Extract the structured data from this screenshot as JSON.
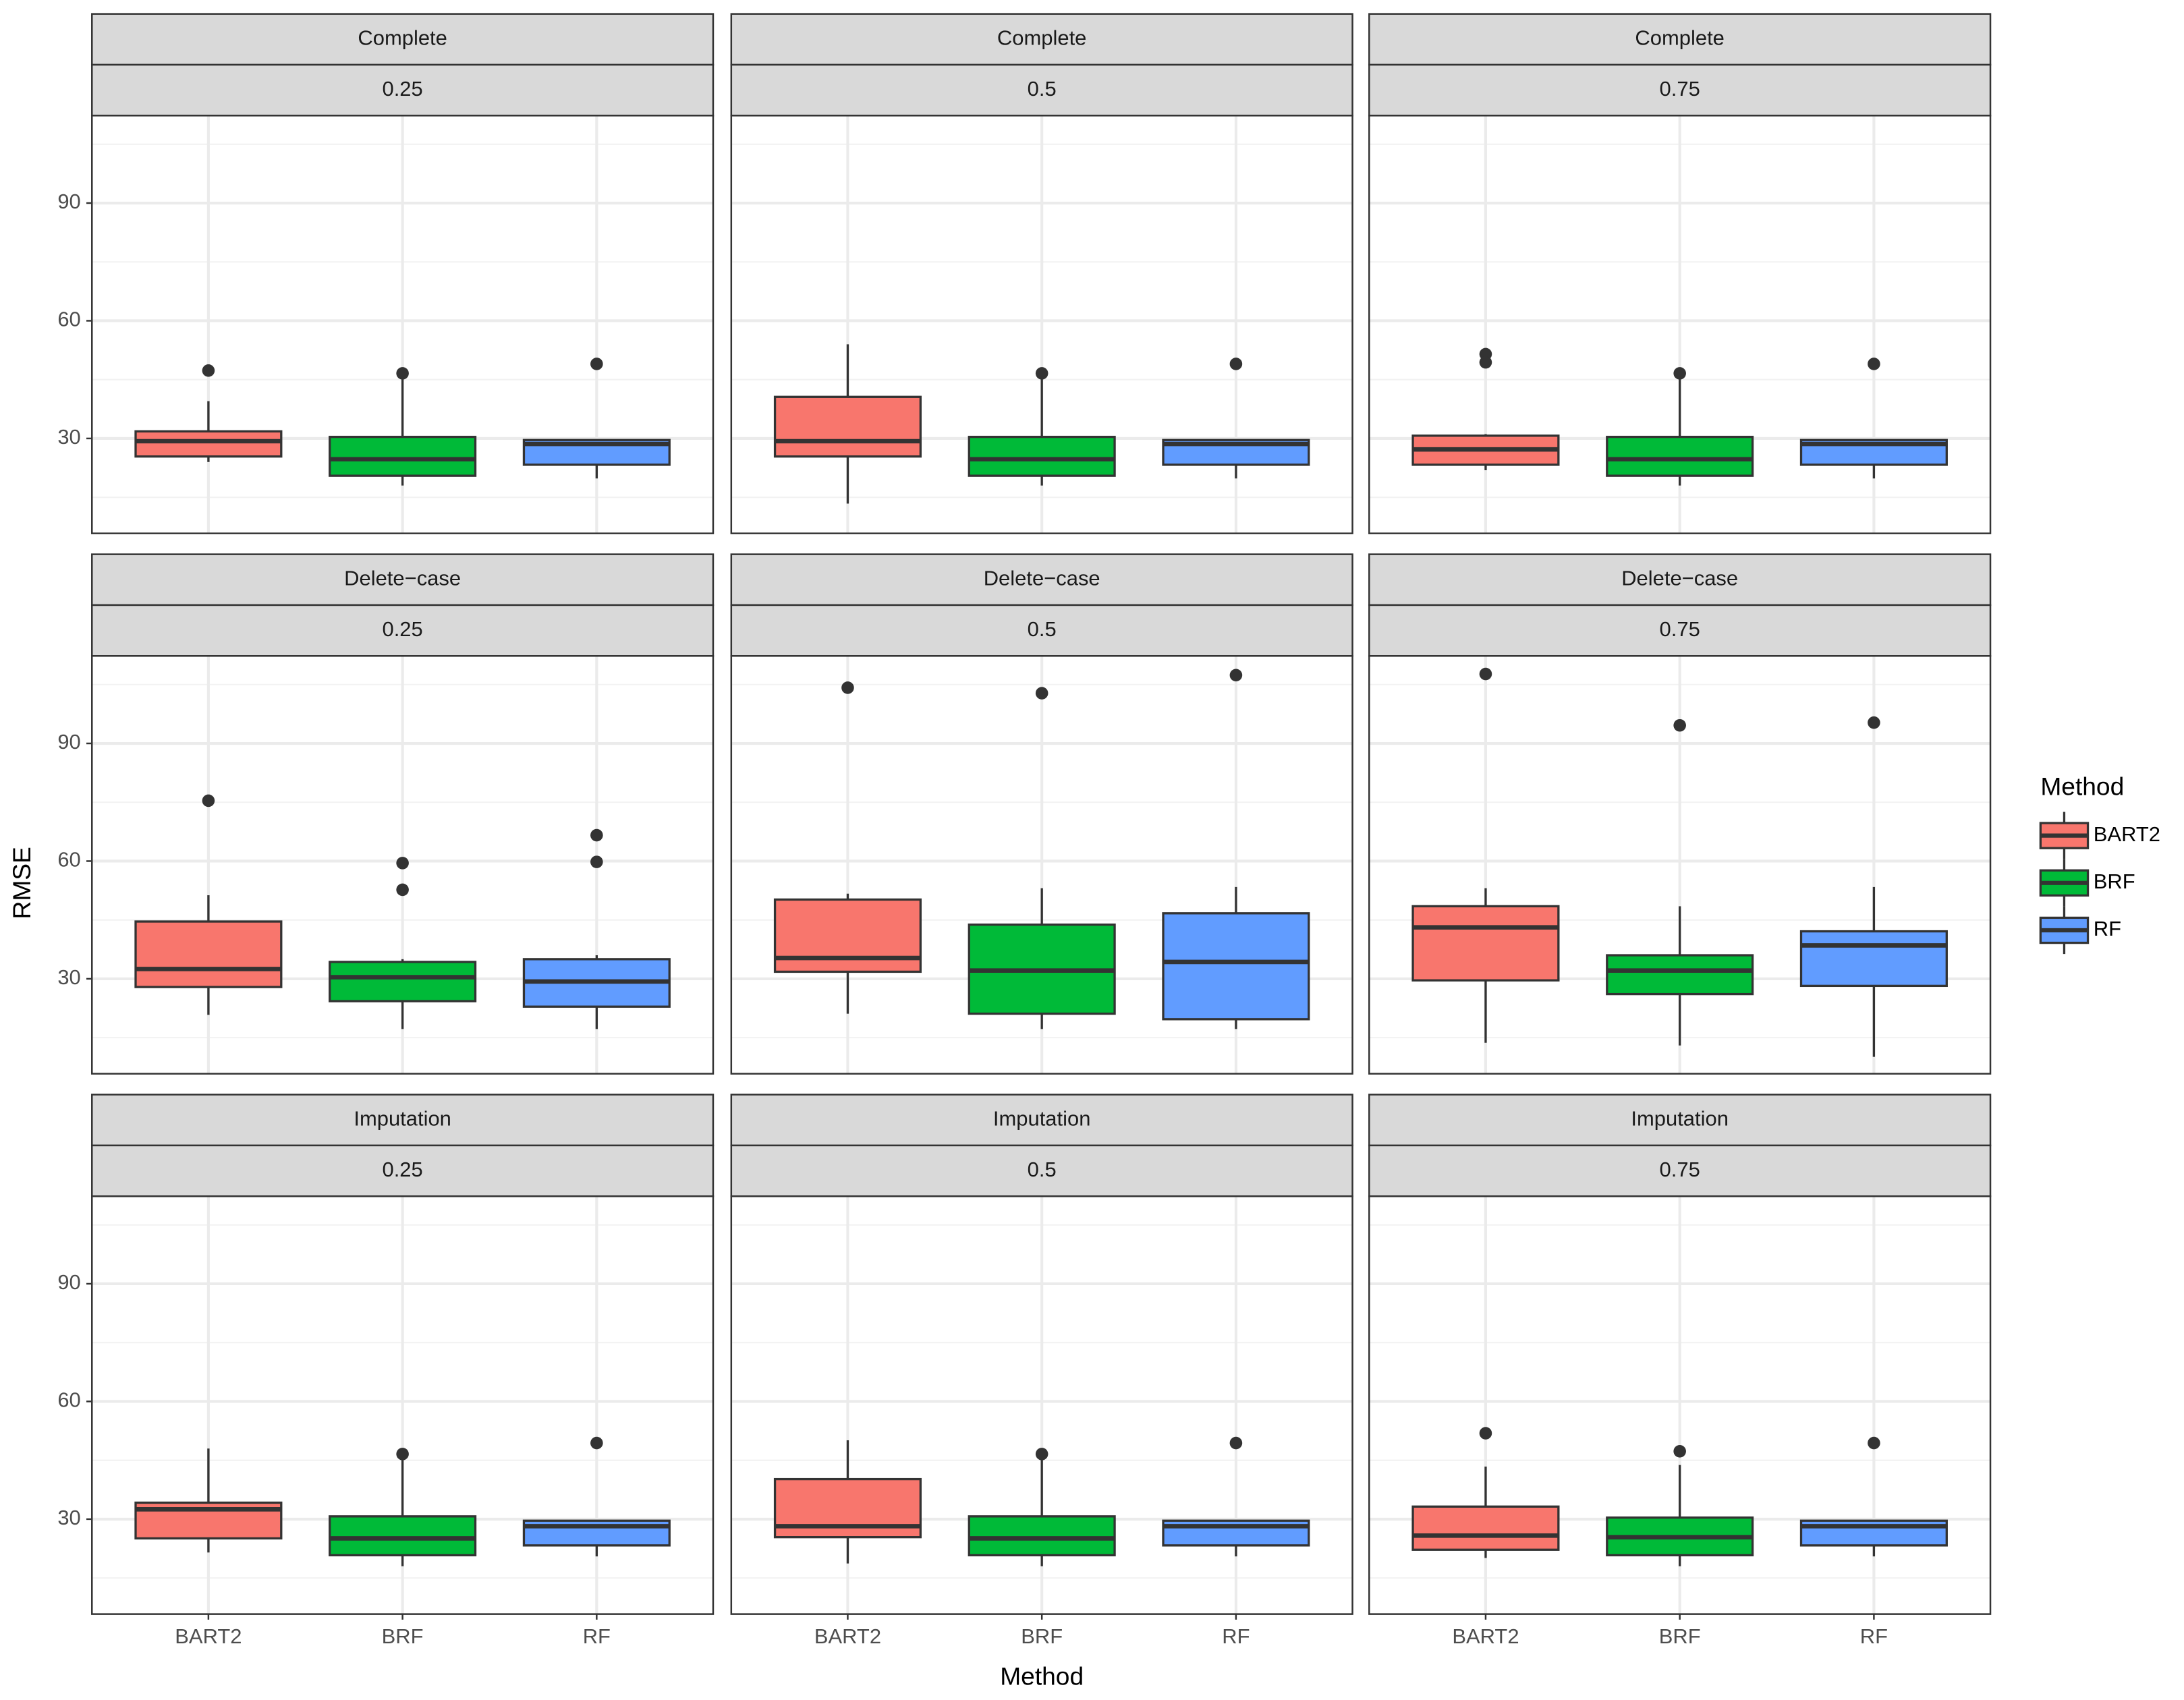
{
  "chart_data": {
    "type": "boxplot",
    "x_label": "Method",
    "y_label": "RMSE",
    "legend_title": "Method",
    "legend_position": "right",
    "categories": [
      "BART2",
      "BRF",
      "RF"
    ],
    "colors": [
      "#F8766D",
      "#00BA38",
      "#619CFF"
    ],
    "ylim": [
      5.8,
      112.3
    ],
    "yticks": [
      30,
      60,
      90
    ],
    "minor_yticks": [
      15,
      45,
      75,
      105
    ],
    "grid": true,
    "panels": [
      {
        "strip": [
          "Complete",
          "0.25"
        ],
        "boxes": [
          {
            "low": 24,
            "q1": 25.4,
            "median": 29.3,
            "q3": 31.8,
            "high": 39.5,
            "outliers": [
              47.3
            ]
          },
          {
            "low": 18,
            "q1": 20.5,
            "median": 24.7,
            "q3": 30.4,
            "high": 45.2,
            "outliers": [
              46.6
            ]
          },
          {
            "low": 19.8,
            "q1": 23.3,
            "median": 28.6,
            "q3": 29.6,
            "high": 29.6,
            "outliers": [
              49
            ]
          }
        ]
      },
      {
        "strip": [
          "Complete",
          "0.5"
        ],
        "boxes": [
          {
            "low": 13.4,
            "q1": 25.4,
            "median": 29.3,
            "q3": 40.6,
            "high": 54,
            "outliers": []
          },
          {
            "low": 18,
            "q1": 20.5,
            "median": 24.7,
            "q3": 30.4,
            "high": 45.2,
            "outliers": [
              46.6
            ]
          },
          {
            "low": 19.8,
            "q1": 23.3,
            "median": 28.6,
            "q3": 29.6,
            "high": 29.6,
            "outliers": [
              49
            ]
          }
        ]
      },
      {
        "strip": [
          "Complete",
          "0.75"
        ],
        "boxes": [
          {
            "low": 21.9,
            "q1": 23.3,
            "median": 27.2,
            "q3": 30.7,
            "high": 31.1,
            "outliers": [
              51.5,
              49.4
            ]
          },
          {
            "low": 18,
            "q1": 20.5,
            "median": 24.7,
            "q3": 30.4,
            "high": 45.2,
            "outliers": [
              46.6
            ]
          },
          {
            "low": 19.8,
            "q1": 23.3,
            "median": 28.6,
            "q3": 29.6,
            "high": 29.6,
            "outliers": [
              49
            ]
          }
        ]
      },
      {
        "strip": [
          "Delete−case",
          "0.25"
        ],
        "boxes": [
          {
            "low": 20.8,
            "q1": 27.9,
            "median": 32.5,
            "q3": 44.6,
            "high": 51.3,
            "outliers": [
              75.4
            ]
          },
          {
            "low": 17.2,
            "q1": 24.3,
            "median": 30.4,
            "q3": 34.3,
            "high": 35,
            "outliers": [
              59.5,
              52.7
            ]
          },
          {
            "low": 17.2,
            "q1": 22.9,
            "median": 29.3,
            "q3": 35,
            "high": 36,
            "outliers": [
              66.6,
              59.8
            ]
          }
        ]
      },
      {
        "strip": [
          "Delete−case",
          "0.5"
        ],
        "boxes": [
          {
            "low": 21.1,
            "q1": 31.8,
            "median": 35.3,
            "q3": 50.2,
            "high": 51.7,
            "outliers": [
              104.2
            ]
          },
          {
            "low": 17.2,
            "q1": 21.1,
            "median": 32.1,
            "q3": 43.8,
            "high": 53.1,
            "outliers": [
              102.8
            ]
          },
          {
            "low": 17.2,
            "q1": 19.7,
            "median": 34.3,
            "q3": 46.7,
            "high": 53.4,
            "outliers": [
              107.4
            ]
          }
        ]
      },
      {
        "strip": [
          "Delete−case",
          "0.75"
        ],
        "boxes": [
          {
            "low": 13.7,
            "q1": 29.6,
            "median": 43.1,
            "q3": 48.5,
            "high": 53.1,
            "outliers": [
              107.7
            ]
          },
          {
            "low": 13,
            "q1": 26.1,
            "median": 32.1,
            "q3": 36,
            "high": 48.5,
            "outliers": [
              94.6
            ]
          },
          {
            "low": 10.1,
            "q1": 28.2,
            "median": 38.5,
            "q3": 42.1,
            "high": 53.4,
            "outliers": [
              95.3
            ]
          }
        ]
      },
      {
        "strip": [
          "Imputation",
          "0.25"
        ],
        "boxes": [
          {
            "low": 21.5,
            "q1": 25.1,
            "median": 32.5,
            "q3": 34.2,
            "high": 48,
            "outliers": []
          },
          {
            "low": 18,
            "q1": 20.8,
            "median": 25.1,
            "q3": 30.7,
            "high": 45.2,
            "outliers": [
              46.6
            ]
          },
          {
            "low": 20.5,
            "q1": 23.3,
            "median": 28.2,
            "q3": 29.6,
            "high": 29.6,
            "outliers": [
              49.4
            ]
          }
        ]
      },
      {
        "strip": [
          "Imputation",
          "0.5"
        ],
        "boxes": [
          {
            "low": 18.7,
            "q1": 25.4,
            "median": 28.2,
            "q3": 40.2,
            "high": 50.1,
            "outliers": []
          },
          {
            "low": 18,
            "q1": 20.8,
            "median": 25.1,
            "q3": 30.7,
            "high": 45.2,
            "outliers": [
              46.6
            ]
          },
          {
            "low": 20.5,
            "q1": 23.3,
            "median": 28.2,
            "q3": 29.6,
            "high": 29.6,
            "outliers": [
              49.4
            ]
          }
        ]
      },
      {
        "strip": [
          "Imputation",
          "0.75"
        ],
        "boxes": [
          {
            "low": 20.1,
            "q1": 22.2,
            "median": 25.8,
            "q3": 33.2,
            "high": 43.4,
            "outliers": [
              51.9
            ]
          },
          {
            "low": 18,
            "q1": 20.8,
            "median": 25.4,
            "q3": 30.4,
            "high": 43.8,
            "outliers": [
              47.3
            ]
          },
          {
            "low": 20.5,
            "q1": 23.3,
            "median": 28.2,
            "q3": 29.6,
            "high": 29.6,
            "outliers": [
              49.4
            ]
          }
        ]
      }
    ]
  }
}
